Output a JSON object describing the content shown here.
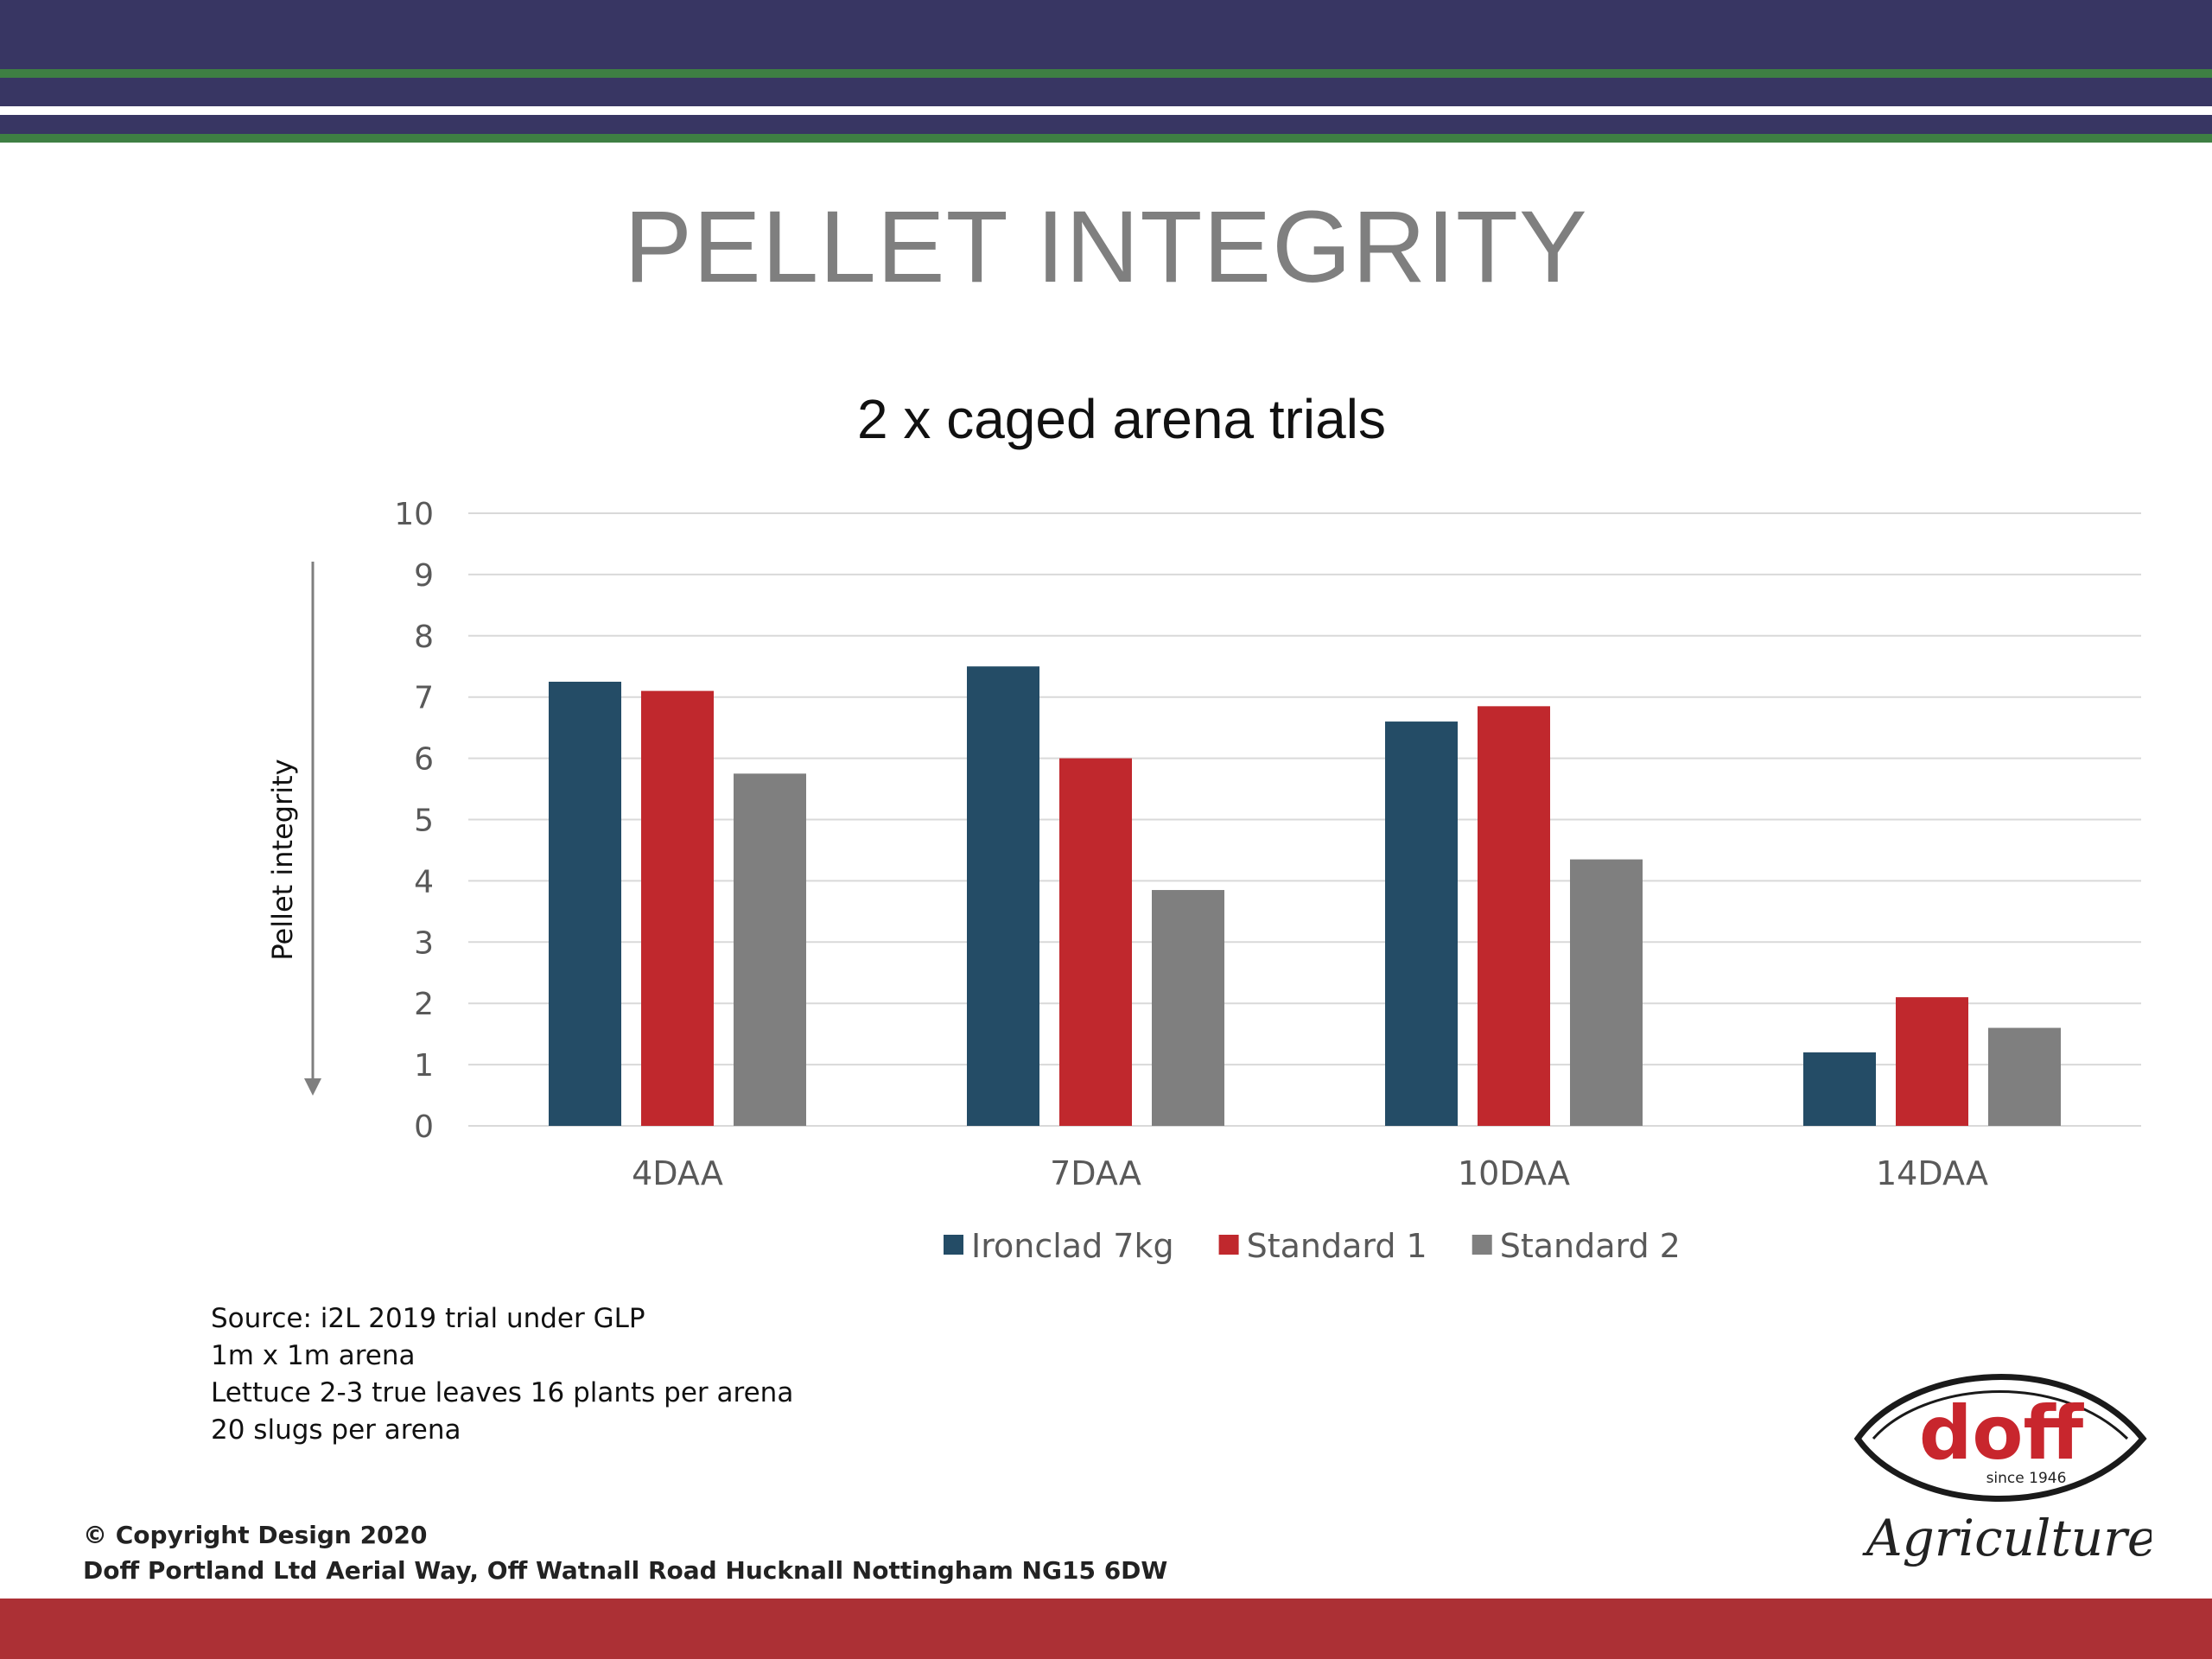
{
  "colors": {
    "header_navy": "#383663",
    "header_green": "#3e7f43",
    "footer_red": "#ac3035",
    "grid": "#d9d9d9",
    "axis_arrow": "#7f7f7f"
  },
  "slide": {
    "title": "PELLET INTEGRITY"
  },
  "chart_data": {
    "type": "bar",
    "title": "2 x caged arena trials",
    "ylabel": "Pellet integrity",
    "xlabel": "",
    "ylim": [
      0,
      10
    ],
    "yticks": [
      "0",
      "1",
      "2",
      "3",
      "4",
      "5",
      "6",
      "7",
      "8",
      "9",
      "10"
    ],
    "grid": true,
    "legend_position": "bottom",
    "categories": [
      "4DAA",
      "7DAA",
      "10DAA",
      "14DAA"
    ],
    "series": [
      {
        "name": "Ironclad 7kg",
        "color": "#244c66",
        "values": [
          7.25,
          7.5,
          6.6,
          1.2
        ]
      },
      {
        "name": "Standard 1",
        "color": "#c0282d",
        "values": [
          7.1,
          6.0,
          6.85,
          2.1
        ]
      },
      {
        "name": "Standard 2",
        "color": "#7f7f7f",
        "values": [
          5.75,
          3.85,
          4.35,
          1.6
        ]
      }
    ]
  },
  "notes": {
    "lines": [
      "Source: i2L 2019 trial under GLP",
      "1m x 1m arena",
      "Lettuce 2-3 true leaves 16 plants per arena",
      "20 slugs per arena"
    ]
  },
  "footer": {
    "copyright": "© Copyright Design 2020",
    "address": "Doff Portland Ltd Aerial Way, Off Watnall Road Hucknall Nottingham NG15 6DW"
  },
  "logo": {
    "word": "doff",
    "since": "since 1946",
    "tagline": "Agriculture"
  }
}
